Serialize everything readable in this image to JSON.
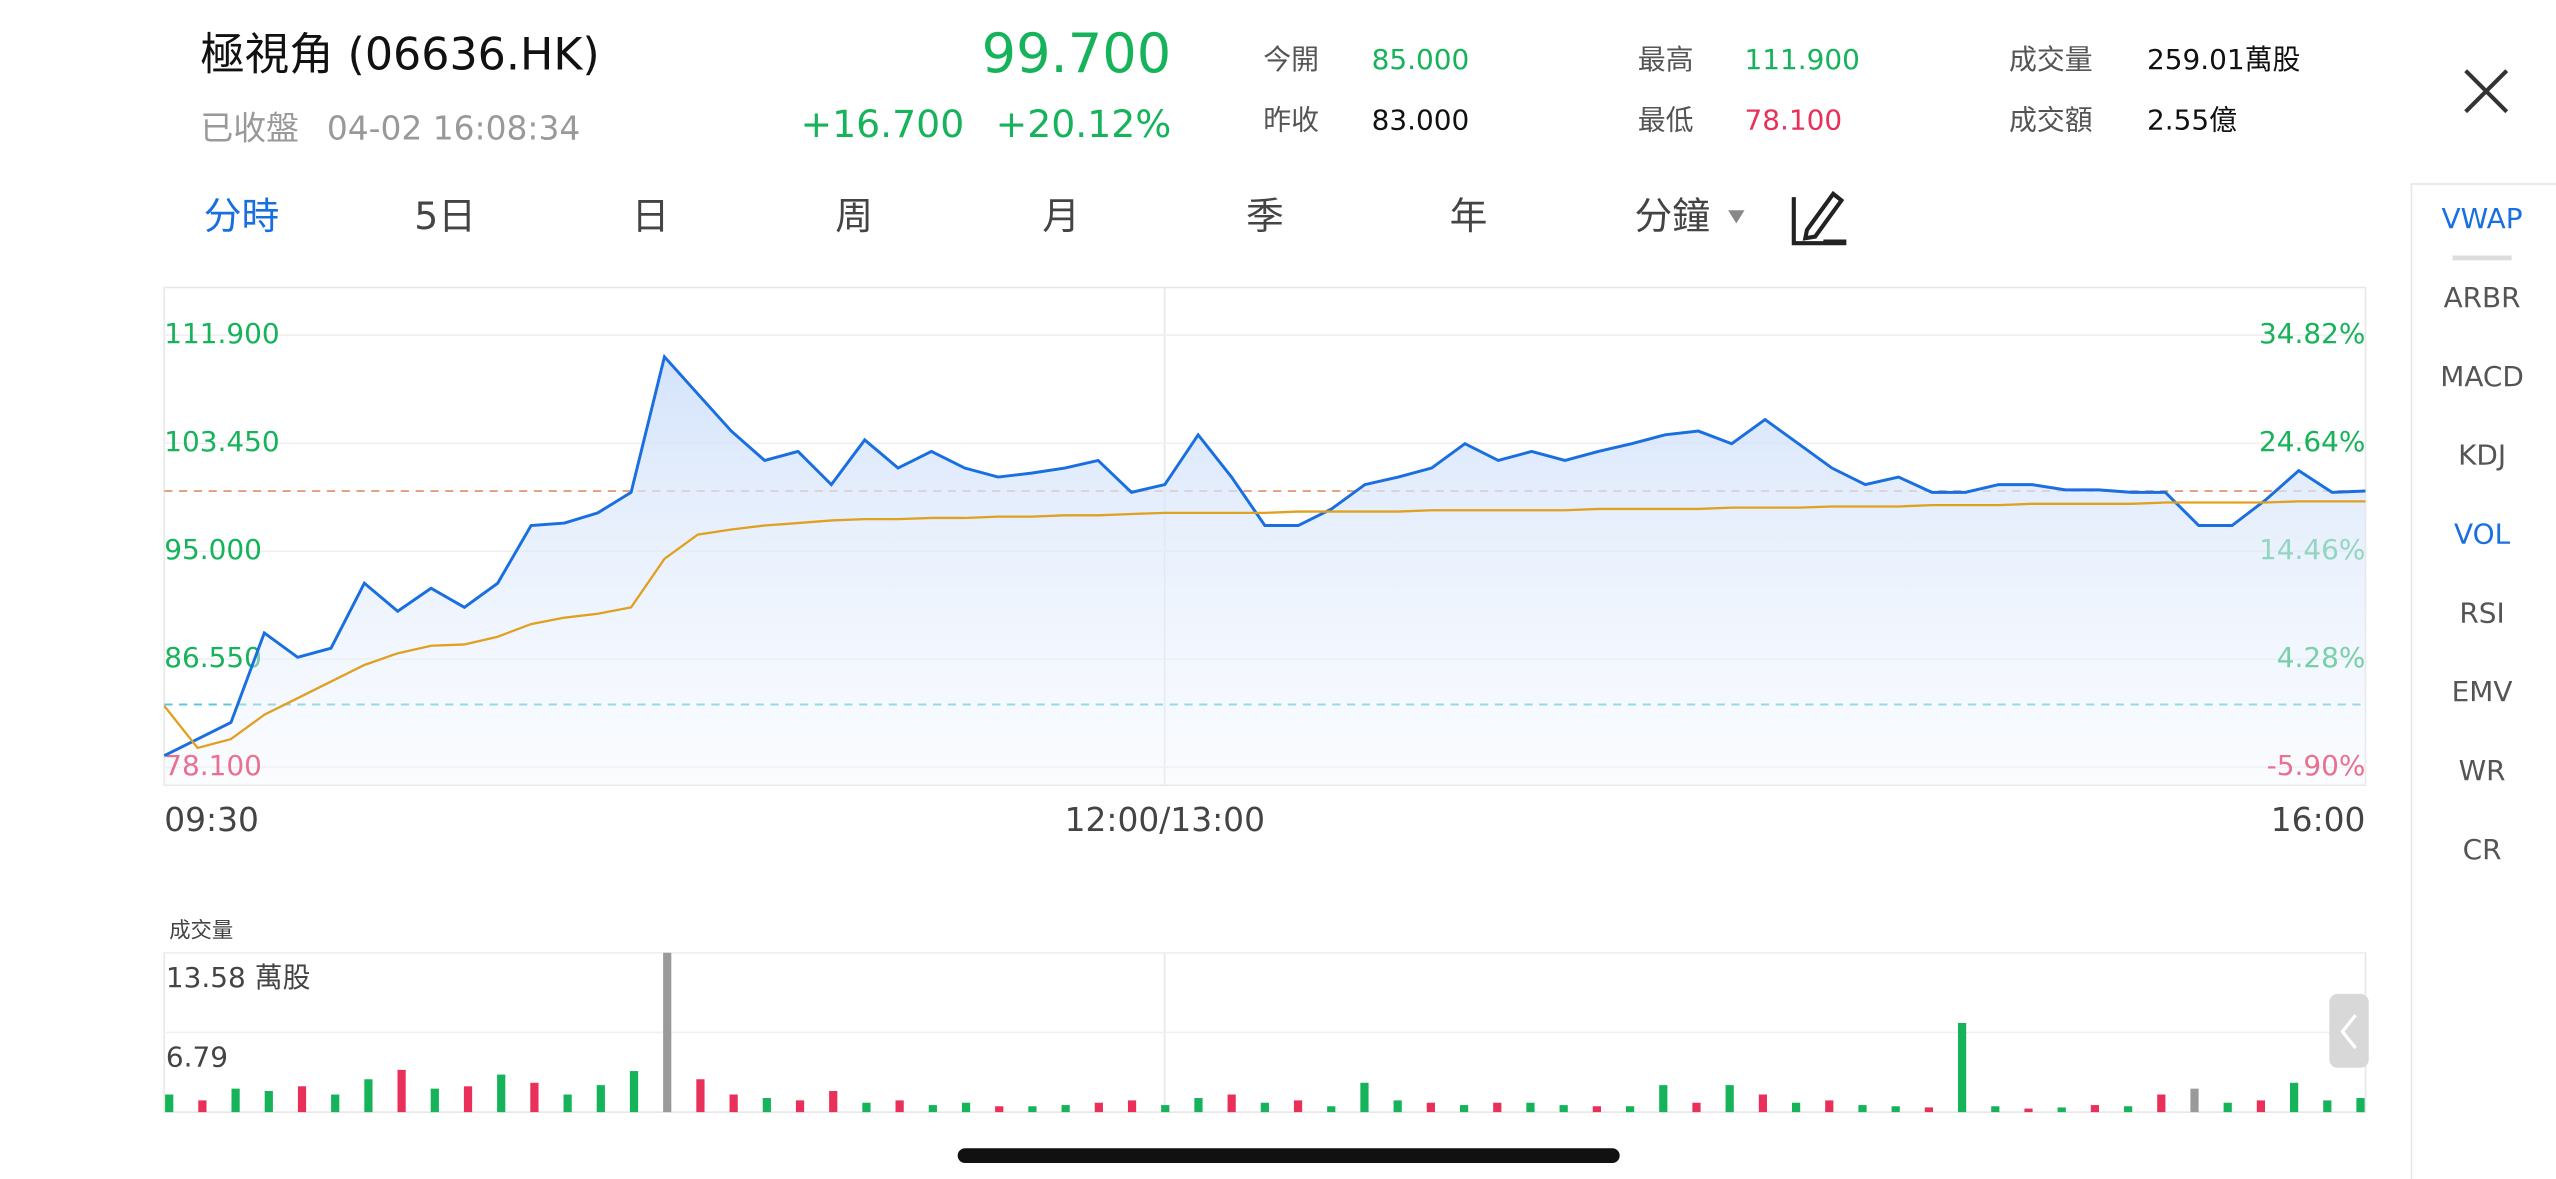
{
  "header": {
    "name": "極視角 (06636.HK)",
    "status": "已收盤",
    "time": "04-02 16:08:34",
    "price": "99.700",
    "change": "+16.700",
    "change_pct": "+20.12%",
    "price_color": "#16b35a",
    "stats": [
      {
        "label": "今開",
        "value": "85.000",
        "color": "#16b35a"
      },
      {
        "label": "昨收",
        "value": "83.000",
        "color": "#111111"
      },
      {
        "label": "最高",
        "value": "111.900",
        "color": "#16b35a"
      },
      {
        "label": "最低",
        "value": "78.100",
        "color": "#e8305a"
      },
      {
        "label": "成交量",
        "value": "259.01萬股",
        "color": "#111111"
      },
      {
        "label": "成交額",
        "value": "2.55億",
        "color": "#111111"
      }
    ]
  },
  "tabs": [
    {
      "label": "分時",
      "active": true
    },
    {
      "label": "5日",
      "active": false
    },
    {
      "label": "日",
      "active": false
    },
    {
      "label": "周",
      "active": false
    },
    {
      "label": "月",
      "active": false
    },
    {
      "label": "季",
      "active": false
    },
    {
      "label": "年",
      "active": false
    },
    {
      "label": "分鐘",
      "active": false
    }
  ],
  "indicators": [
    {
      "label": "VWAP",
      "active": true
    },
    {
      "label": "ARBR",
      "active": false
    },
    {
      "label": "MACD",
      "active": false
    },
    {
      "label": "KDJ",
      "active": false
    },
    {
      "label": "VOL",
      "active": true
    },
    {
      "label": "RSI",
      "active": false
    },
    {
      "label": "EMV",
      "active": false
    },
    {
      "label": "WR",
      "active": false
    },
    {
      "label": "CR",
      "active": false
    }
  ],
  "chart_data": [
    {
      "type": "line",
      "categories": [
        "09:30",
        null,
        null,
        null,
        null,
        null,
        null,
        null,
        null,
        null,
        null,
        null,
        null,
        null,
        null,
        null,
        null,
        null,
        null,
        null,
        null,
        null,
        null,
        null,
        null,
        null,
        null,
        null,
        null,
        null,
        "12:00/13:00",
        null,
        null,
        null,
        null,
        null,
        null,
        null,
        null,
        null,
        null,
        null,
        null,
        null,
        null,
        null,
        null,
        null,
        null,
        null,
        null,
        null,
        null,
        null,
        null,
        null,
        null,
        null,
        null,
        null,
        null,
        null,
        null,
        null,
        null,
        null,
        "16:00"
      ],
      "series": [
        {
          "color": "#1a6fe0",
          "values": [
            79.0,
            80.3,
            81.6,
            88.6,
            86.7,
            87.4,
            92.5,
            90.3,
            92.1,
            90.6,
            92.5,
            97.0,
            97.2,
            98.0,
            99.6,
            110.2,
            107.3,
            104.4,
            102.1,
            102.8,
            100.2,
            103.7,
            101.5,
            102.8,
            101.5,
            100.8,
            101.1,
            101.5,
            102.1,
            99.6,
            100.2,
            104.1,
            100.8,
            97.0,
            97.0,
            98.3,
            100.2,
            100.8,
            101.5,
            103.4,
            102.1,
            102.8,
            102.1,
            102.8,
            103.4,
            104.1,
            104.4,
            103.4,
            105.3,
            103.4,
            101.5,
            100.2,
            100.8,
            99.6,
            99.6,
            100.2,
            100.2,
            99.8,
            99.8,
            99.6,
            99.6,
            97.0,
            97.0,
            99.0,
            101.3,
            99.6,
            99.7
          ]
        },
        {
          "name": "VWAP",
          "color": "#e0a020",
          "values": [
            82.9,
            79.6,
            80.3,
            82.2,
            83.5,
            84.8,
            86.1,
            87.0,
            87.6,
            87.7,
            88.3,
            89.3,
            89.8,
            90.1,
            90.6,
            94.4,
            96.3,
            96.7,
            97.0,
            97.2,
            97.4,
            97.5,
            97.5,
            97.6,
            97.6,
            97.7,
            97.7,
            97.8,
            97.8,
            97.9,
            98.0,
            98.0,
            98.0,
            98.0,
            98.1,
            98.1,
            98.1,
            98.1,
            98.2,
            98.2,
            98.2,
            98.2,
            98.2,
            98.3,
            98.3,
            98.3,
            98.3,
            98.4,
            98.4,
            98.4,
            98.5,
            98.5,
            98.5,
            98.6,
            98.6,
            98.6,
            98.7,
            98.7,
            98.7,
            98.7,
            98.8,
            98.8,
            98.8,
            98.8,
            98.9,
            98.9,
            98.9
          ]
        }
      ],
      "ylim": [
        78.1,
        111.9
      ],
      "yticks": [
        {
          "value": 111.9,
          "label": "111.900"
        },
        {
          "value": 103.45,
          "label": "103.450"
        },
        {
          "value": 95.0,
          "label": "95.000"
        },
        {
          "value": 86.55,
          "label": "86.550"
        },
        {
          "value": 78.1,
          "label": "78.100"
        }
      ],
      "y2lim": [
        -5.9,
        34.82
      ],
      "y2ticks": [
        {
          "value": 34.82,
          "label": "34.82%"
        },
        {
          "value": 24.64,
          "label": "24.64%"
        },
        {
          "value": 14.46,
          "label": "14.46%"
        },
        {
          "value": 4.28,
          "label": "4.28%"
        },
        {
          "value": -5.9,
          "label": "-5.90%"
        }
      ],
      "ref_lines": [
        {
          "value": 83.0,
          "color": "#5bc8e0"
        },
        {
          "value": 99.7,
          "color": "#e89a80"
        }
      ],
      "grid": true
    },
    {
      "type": "bar",
      "title": "成交量",
      "values": [
        1.5,
        1.0,
        2.0,
        1.8,
        2.2,
        1.5,
        2.8,
        3.6,
        2.0,
        2.2,
        3.2,
        2.5,
        1.5,
        2.3,
        3.5,
        13.58,
        2.8,
        1.5,
        1.2,
        1.0,
        1.8,
        0.8,
        1.0,
        0.6,
        0.8,
        0.5,
        0.5,
        0.6,
        0.8,
        1.0,
        0.6,
        1.2,
        1.5,
        0.8,
        1.0,
        0.5,
        2.5,
        1.0,
        0.8,
        0.6,
        0.8,
        0.8,
        0.6,
        0.5,
        0.5,
        2.3,
        0.8,
        2.3,
        1.5,
        0.8,
        1.0,
        0.6,
        0.5,
        0.4,
        7.6,
        0.5,
        0.3,
        0.4,
        0.6,
        0.5,
        1.5,
        2.0,
        0.8,
        1.0,
        2.5,
        1.0,
        1.2
      ],
      "colors": [
        "#16b35a",
        "#e8305a",
        "#16b35a",
        "#16b35a",
        "#e8305a",
        "#16b35a",
        "#16b35a",
        "#e8305a",
        "#16b35a",
        "#e8305a",
        "#16b35a",
        "#e8305a",
        "#16b35a",
        "#16b35a",
        "#16b35a",
        "#9a9a9a",
        "#e8305a",
        "#e8305a",
        "#16b35a",
        "#e8305a",
        "#e8305a",
        "#16b35a",
        "#e8305a",
        "#16b35a",
        "#16b35a",
        "#e8305a",
        "#16b35a",
        "#16b35a",
        "#e8305a",
        "#e8305a",
        "#16b35a",
        "#16b35a",
        "#e8305a",
        "#16b35a",
        "#e8305a",
        "#16b35a",
        "#16b35a",
        "#16b35a",
        "#e8305a",
        "#16b35a",
        "#e8305a",
        "#16b35a",
        "#16b35a",
        "#e8305a",
        "#16b35a",
        "#16b35a",
        "#e8305a",
        "#16b35a",
        "#e8305a",
        "#16b35a",
        "#e8305a",
        "#16b35a",
        "#16b35a",
        "#e8305a",
        "#16b35a",
        "#16b35a",
        "#e8305a",
        "#16b35a",
        "#e8305a",
        "#16b35a",
        "#e8305a",
        "#9a9a9a",
        "#16b35a",
        "#e8305a",
        "#16b35a",
        "#16b35a",
        "#16b35a"
      ],
      "ylim": [
        0,
        13.58
      ],
      "yticks": [
        {
          "value": 13.58,
          "label": "13.58 萬股"
        },
        {
          "value": 6.79,
          "label": "6.79"
        }
      ],
      "grid": true
    }
  ]
}
